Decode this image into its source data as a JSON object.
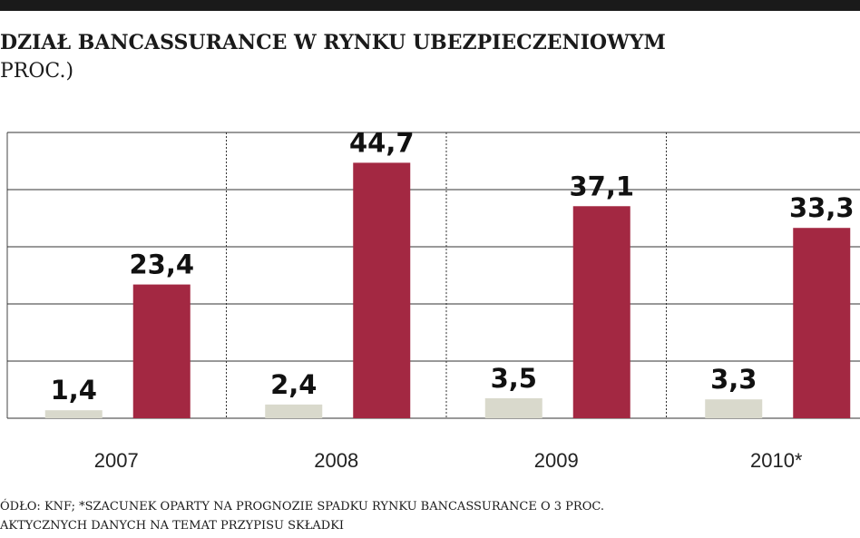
{
  "chart_data": {
    "type": "bar",
    "title": "DZIAŁ BANCASSURANCE W RYNKU UBEZPIECZENIOWYM",
    "subtitle": "PROC.)",
    "categories": [
      "2007",
      "2008",
      "2009",
      "2010*"
    ],
    "series": [
      {
        "color": "#d9d9cc",
        "values": [
          1.4,
          2.4,
          3.5,
          3.3
        ],
        "value_labels": [
          "1,4",
          "2,4",
          "3,5",
          "3,3"
        ]
      },
      {
        "color": "#a32842",
        "values": [
          23.4,
          44.7,
          37.1,
          33.3
        ],
        "value_labels": [
          "23,4",
          "44,7",
          "37,1",
          "33,3"
        ]
      }
    ],
    "ylim": [
      0,
      50
    ],
    "yticks": [
      0,
      10,
      20,
      30,
      40,
      50
    ],
    "grid": true,
    "source": [
      "ÓDŁO: KNF; *SZACUNEK OPARTY NA PROGNOZIE SPADKU RYNKU BANCASSURANCE O 3 PROC.",
      "AKTYCZNYCH DANYCH NA TEMAT PRZYPISU SKŁADKI"
    ]
  }
}
